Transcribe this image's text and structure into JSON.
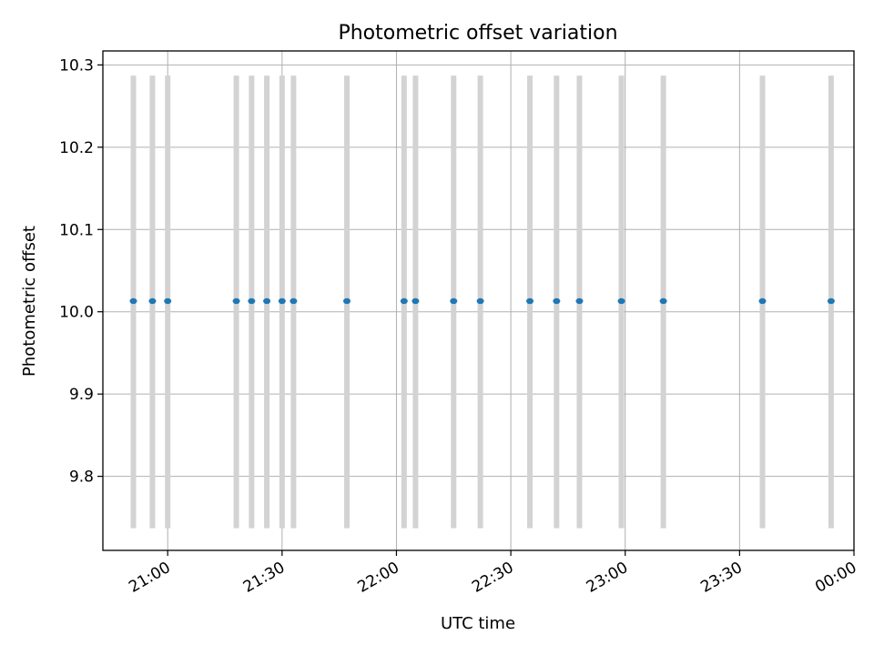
{
  "chart_data": {
    "type": "scatter",
    "title": "Photometric offset variation",
    "xlabel": "UTC time",
    "ylabel": "Photometric offset",
    "x_ticks": [
      "21:00",
      "21:30",
      "22:00",
      "22:30",
      "23:00",
      "23:30",
      "00:00"
    ],
    "y_ticks": [
      9.8,
      9.9,
      10.0,
      10.1,
      10.2,
      10.3
    ],
    "xlim": [
      "20:43",
      "00:00"
    ],
    "ylim": [
      9.71,
      10.317
    ],
    "grid": true,
    "point_color": "#1f77b4",
    "errorbar_color": "#d3d3d3",
    "error_range": [
      9.737,
      10.287
    ],
    "points": [
      {
        "time": "20:51",
        "value": 10.013
      },
      {
        "time": "20:56",
        "value": 10.013
      },
      {
        "time": "21:00",
        "value": 10.013
      },
      {
        "time": "21:18",
        "value": 10.013
      },
      {
        "time": "21:22",
        "value": 10.013
      },
      {
        "time": "21:26",
        "value": 10.013
      },
      {
        "time": "21:30",
        "value": 10.013
      },
      {
        "time": "21:33",
        "value": 10.013
      },
      {
        "time": "21:47",
        "value": 10.013
      },
      {
        "time": "22:02",
        "value": 10.013
      },
      {
        "time": "22:05",
        "value": 10.013
      },
      {
        "time": "22:15",
        "value": 10.013
      },
      {
        "time": "22:22",
        "value": 10.013
      },
      {
        "time": "22:35",
        "value": 10.013
      },
      {
        "time": "22:42",
        "value": 10.013
      },
      {
        "time": "22:48",
        "value": 10.013
      },
      {
        "time": "22:59",
        "value": 10.013
      },
      {
        "time": "23:10",
        "value": 10.013
      },
      {
        "time": "23:36",
        "value": 10.013
      },
      {
        "time": "23:54",
        "value": 10.013
      }
    ]
  }
}
